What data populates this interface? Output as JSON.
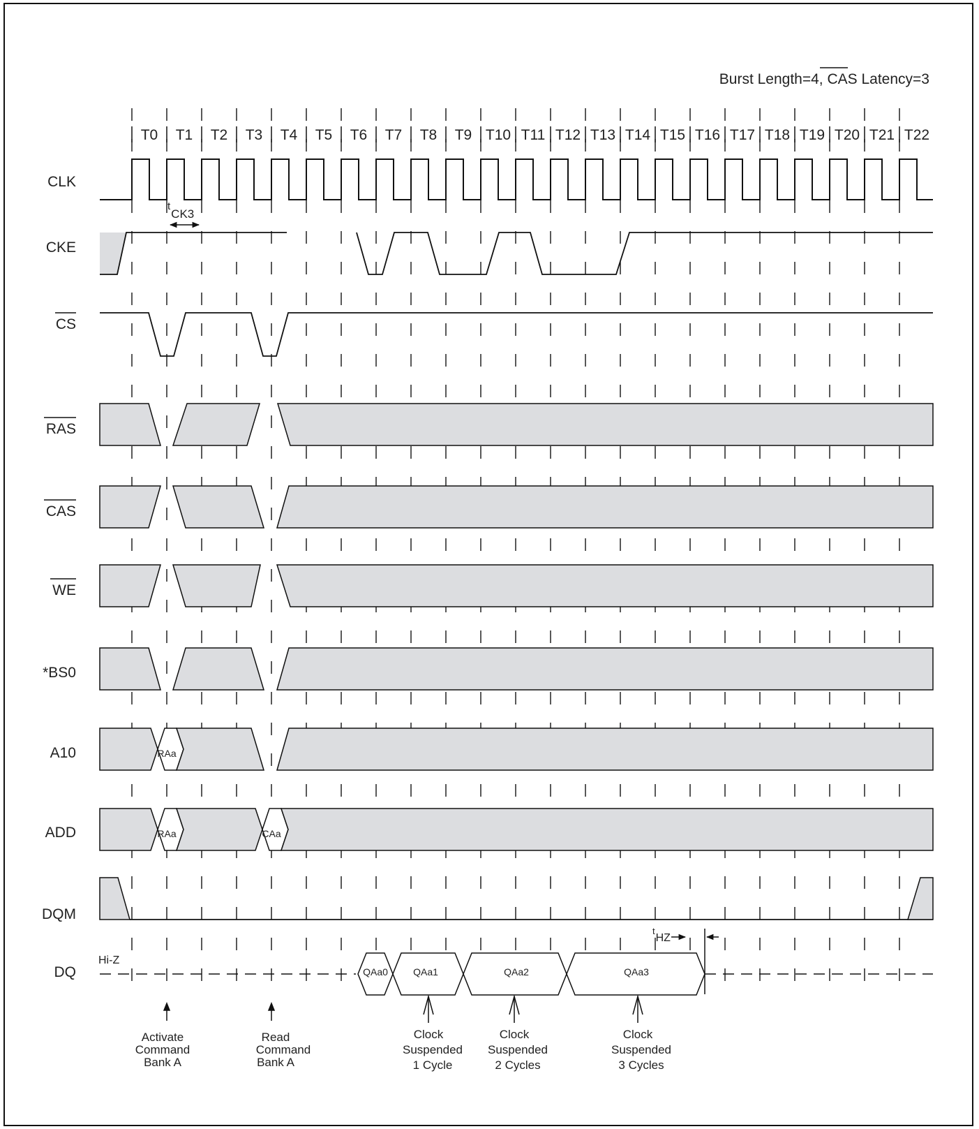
{
  "header": {
    "prefix": "Burst Length=4, ",
    "cas_label": "CAS",
    "suffix": " Latency=3"
  },
  "clock_labels": [
    "T0",
    "T1",
    "T2",
    "T3",
    "T4",
    "T5",
    "T6",
    "T7",
    "T8",
    "T9",
    "T10",
    "T11",
    "T12",
    "T13",
    "T14",
    "T15",
    "T16",
    "T17",
    "T18",
    "T19",
    "T20",
    "T21",
    "T22"
  ],
  "signals": {
    "clk": "CLK",
    "cke": "CKE",
    "cs": "CS",
    "ras": "RAS",
    "cas": "CAS",
    "we": "WE",
    "bs0": "*BS0",
    "a10": "A10",
    "add": "ADD",
    "dqm": "DQM",
    "dq": "DQ"
  },
  "timing": {
    "tck3_t": "t",
    "tck3_sub": "CK3",
    "thz_t": "t",
    "thz_sub": "HZ",
    "hiz": "Hi-Z"
  },
  "values": {
    "a10_raa": "RAa",
    "add_raa": "RAa",
    "add_caa": "CAa",
    "qaa0": "QAa0",
    "qaa1": "QAa1",
    "qaa2": "QAa2",
    "qaa3": "QAa3"
  },
  "annotations": [
    {
      "lines": [
        "Activate",
        "Command",
        "Bank A"
      ]
    },
    {
      "lines": [
        "Read",
        "Command",
        "Bank A"
      ]
    },
    {
      "lines": [
        "Clock",
        "Suspended",
        "1 Cycle"
      ]
    },
    {
      "lines": [
        "Clock",
        "Suspended",
        "2 Cycles"
      ]
    },
    {
      "lines": [
        "Clock",
        "Suspended",
        "3 Cycles"
      ]
    }
  ],
  "colors": {
    "shade": "#dcdde0",
    "line": "#111111"
  }
}
